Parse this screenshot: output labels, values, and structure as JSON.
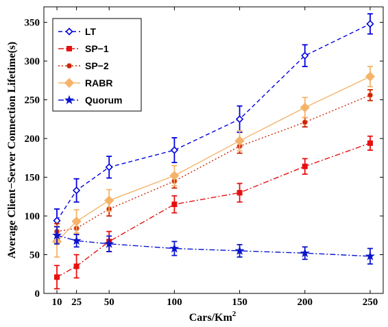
{
  "chart_data": {
    "type": "line",
    "xlabel": "Cars/Km",
    "xlabel_superscript": "2",
    "ylabel": "Average Client−Server Connection Lifetime(s)",
    "x": [
      10,
      25,
      50,
      100,
      150,
      200,
      250
    ],
    "xlim": [
      0,
      260
    ],
    "ylim": [
      0,
      370
    ],
    "xticks": [
      10,
      25,
      50,
      100,
      150,
      200,
      250
    ],
    "yticks": [
      0,
      50,
      100,
      150,
      200,
      250,
      300,
      350
    ],
    "grid": false,
    "legend_position": "top-left",
    "series": [
      {
        "name": "LT",
        "color": "#0000dd",
        "dash": "6,4",
        "marker": "diamond-open",
        "values": [
          94,
          133,
          163,
          185,
          225,
          307,
          348
        ],
        "errors": [
          15,
          15,
          14,
          16,
          17,
          14,
          13
        ]
      },
      {
        "name": "SP−1",
        "color": "#e61010",
        "dash": "8,3,2,3",
        "marker": "square",
        "values": [
          21,
          35,
          67,
          115,
          130,
          164,
          194
        ],
        "errors": [
          15,
          15,
          13,
          11,
          12,
          10,
          9
        ]
      },
      {
        "name": "SP−2",
        "color": "#cc2200",
        "dash": "2,3",
        "marker": "circle",
        "values": [
          80,
          84,
          109,
          145,
          190,
          221,
          256
        ],
        "errors": [
          10,
          8,
          9,
          9,
          9,
          6,
          7
        ]
      },
      {
        "name": "RABR",
        "color": "#f5b36a",
        "dash": "",
        "marker": "diamond",
        "values": [
          67,
          93,
          120,
          152,
          197,
          240,
          280
        ],
        "errors": [
          20,
          15,
          14,
          13,
          13,
          13,
          13
        ]
      },
      {
        "name": "Quorum",
        "color": "#0a14cc",
        "dash": "8,3,2,3",
        "marker": "star",
        "values": [
          75,
          68,
          64,
          58,
          55,
          52,
          48
        ],
        "errors": [
          11,
          8,
          10,
          9,
          8,
          8,
          10
        ]
      }
    ]
  }
}
